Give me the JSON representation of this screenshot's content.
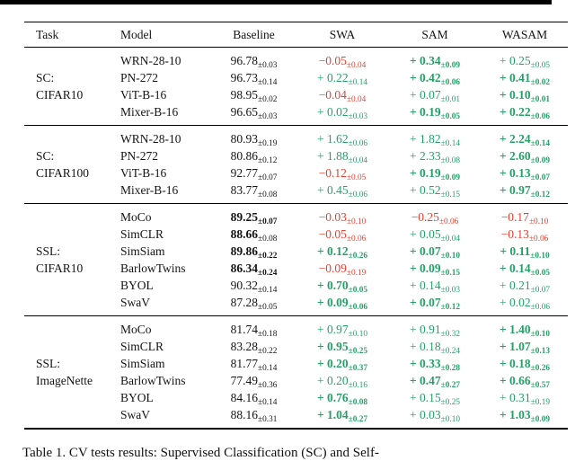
{
  "colors": {
    "green": "#25a168",
    "red": "#ee3d2e",
    "rule": "#000000"
  },
  "page": {
    "caption": "Table 1. CV tests results: Supervised Classification (SC) and Self-"
  },
  "table": {
    "headers": [
      "Task",
      "Model",
      "Baseline",
      "SWA",
      "SAM",
      "WASAM"
    ],
    "groups": [
      {
        "task_line1": "SC:",
        "task_line2": "CIFAR10",
        "rows": [
          {
            "model": "WRN-28-10",
            "baseline": {
              "v": "96.78",
              "s": "±0.03",
              "c": "black",
              "b": false
            },
            "swa": {
              "v": "−0.05",
              "s": "±0.04",
              "c": "red",
              "b": false
            },
            "sam": {
              "v": "+ 0.34",
              "s": "±0.09",
              "c": "green",
              "b": true
            },
            "wasam": {
              "v": "+ 0.25",
              "s": "±0.05",
              "c": "green",
              "b": false
            }
          },
          {
            "model": "PN-272",
            "baseline": {
              "v": "96.73",
              "s": "±0.14",
              "c": "black",
              "b": false
            },
            "swa": {
              "v": "+ 0.22",
              "s": "±0.14",
              "c": "green",
              "b": false
            },
            "sam": {
              "v": "+ 0.42",
              "s": "±0.06",
              "c": "green",
              "b": true
            },
            "wasam": {
              "v": "+ 0.41",
              "s": "±0.02",
              "c": "green",
              "b": true
            }
          },
          {
            "model": "ViT-B-16",
            "baseline": {
              "v": "98.95",
              "s": "±0.02",
              "c": "black",
              "b": false
            },
            "swa": {
              "v": "−0.04",
              "s": "±0.04",
              "c": "red",
              "b": false
            },
            "sam": {
              "v": "+ 0.07",
              "s": "±0.01",
              "c": "green",
              "b": false
            },
            "wasam": {
              "v": "+ 0.10",
              "s": "±0.01",
              "c": "green",
              "b": true
            }
          },
          {
            "model": "Mixer-B-16",
            "baseline": {
              "v": "96.65",
              "s": "±0.03",
              "c": "black",
              "b": false
            },
            "swa": {
              "v": "+ 0.02",
              "s": "±0.03",
              "c": "green",
              "b": false
            },
            "sam": {
              "v": "+ 0.19",
              "s": "±0.05",
              "c": "green",
              "b": true
            },
            "wasam": {
              "v": "+ 0.22",
              "s": "±0.06",
              "c": "green",
              "b": true
            }
          }
        ]
      },
      {
        "task_line1": "SC:",
        "task_line2": "CIFAR100",
        "rows": [
          {
            "model": "WRN-28-10",
            "baseline": {
              "v": "80.93",
              "s": "±0.19",
              "c": "black",
              "b": false
            },
            "swa": {
              "v": "+ 1.62",
              "s": "±0.06",
              "c": "green",
              "b": false
            },
            "sam": {
              "v": "+ 1.82",
              "s": "±0.14",
              "c": "green",
              "b": false
            },
            "wasam": {
              "v": "+ 2.24",
              "s": "±0.14",
              "c": "green",
              "b": true
            }
          },
          {
            "model": "PN-272",
            "baseline": {
              "v": "80.86",
              "s": "±0.12",
              "c": "black",
              "b": false
            },
            "swa": {
              "v": "+ 1.88",
              "s": "±0.04",
              "c": "green",
              "b": false
            },
            "sam": {
              "v": "+ 2.33",
              "s": "±0.08",
              "c": "green",
              "b": false
            },
            "wasam": {
              "v": "+ 2.60",
              "s": "±0.09",
              "c": "green",
              "b": true
            }
          },
          {
            "model": "ViT-B-16",
            "baseline": {
              "v": "92.77",
              "s": "±0.07",
              "c": "black",
              "b": false
            },
            "swa": {
              "v": "−0.12",
              "s": "±0.05",
              "c": "red",
              "b": false
            },
            "sam": {
              "v": "+ 0.19",
              "s": "±0.09",
              "c": "green",
              "b": true
            },
            "wasam": {
              "v": "+ 0.13",
              "s": "±0.07",
              "c": "green",
              "b": true
            }
          },
          {
            "model": "Mixer-B-16",
            "baseline": {
              "v": "83.77",
              "s": "±0.08",
              "c": "black",
              "b": false
            },
            "swa": {
              "v": "+ 0.45",
              "s": "±0.06",
              "c": "green",
              "b": false
            },
            "sam": {
              "v": "+ 0.52",
              "s": "±0.15",
              "c": "green",
              "b": false
            },
            "wasam": {
              "v": "+ 0.97",
              "s": "±0.12",
              "c": "green",
              "b": true
            }
          }
        ]
      },
      {
        "task_line1": "SSL:",
        "task_line2": "CIFAR10",
        "rows": [
          {
            "model": "MoCo",
            "baseline": {
              "v": "89.25",
              "s": "±0.07",
              "c": "black",
              "b": true
            },
            "swa": {
              "v": "−0.03",
              "s": "±0.10",
              "c": "red",
              "b": false
            },
            "sam": {
              "v": "−0.25",
              "s": "±0.06",
              "c": "red",
              "b": false
            },
            "wasam": {
              "v": "−0.17",
              "s": "±0.10",
              "c": "red",
              "b": false
            }
          },
          {
            "model": "SimCLR",
            "baseline": {
              "v": "88.66",
              "s": "±0.08",
              "c": "black",
              "b": true,
              "sb": false
            },
            "swa": {
              "v": "−0.05",
              "s": "±0.06",
              "c": "red",
              "b": false
            },
            "sam": {
              "v": "+ 0.05",
              "s": "±0.04",
              "c": "green",
              "b": false
            },
            "wasam": {
              "v": "−0.13",
              "s": "±0.06",
              "c": "red",
              "b": false
            }
          },
          {
            "model": "SimSiam",
            "baseline": {
              "v": "89.86",
              "s": "±0.22",
              "c": "black",
              "b": true
            },
            "swa": {
              "v": "+ 0.12",
              "s": "±0.26",
              "c": "green",
              "b": true
            },
            "sam": {
              "v": "+ 0.07",
              "s": "±0.10",
              "c": "green",
              "b": true
            },
            "wasam": {
              "v": "+ 0.11",
              "s": "±0.10",
              "c": "green",
              "b": true
            }
          },
          {
            "model": "BarlowTwins",
            "baseline": {
              "v": "86.34",
              "s": "±0.24",
              "c": "black",
              "b": true
            },
            "swa": {
              "v": "−0.09",
              "s": "±0.19",
              "c": "red",
              "b": false
            },
            "sam": {
              "v": "+ 0.09",
              "s": "±0.15",
              "c": "green",
              "b": true
            },
            "wasam": {
              "v": "+ 0.14",
              "s": "±0.05",
              "c": "green",
              "b": true
            }
          },
          {
            "model": "BYOL",
            "baseline": {
              "v": "90.32",
              "s": "±0.14",
              "c": "black",
              "b": false
            },
            "swa": {
              "v": "+ 0.70",
              "s": "±0.05",
              "c": "green",
              "b": true
            },
            "sam": {
              "v": "+ 0.14",
              "s": "±0.03",
              "c": "green",
              "b": false
            },
            "wasam": {
              "v": "+ 0.21",
              "s": "±0.07",
              "c": "green",
              "b": false
            }
          },
          {
            "model": "SwaV",
            "baseline": {
              "v": "87.28",
              "s": "±0.05",
              "c": "black",
              "b": false
            },
            "swa": {
              "v": "+ 0.09",
              "s": "±0.06",
              "c": "green",
              "b": true
            },
            "sam": {
              "v": "+ 0.07",
              "s": "±0.12",
              "c": "green",
              "b": true
            },
            "wasam": {
              "v": "+ 0.02",
              "s": "±0.06",
              "c": "green",
              "b": false
            }
          }
        ]
      },
      {
        "task_line1": "SSL:",
        "task_line2": "ImageNette",
        "rows": [
          {
            "model": "MoCo",
            "baseline": {
              "v": "81.74",
              "s": "±0.18",
              "c": "black",
              "b": false
            },
            "swa": {
              "v": "+ 0.97",
              "s": "±0.10",
              "c": "green",
              "b": false
            },
            "sam": {
              "v": "+ 0.91",
              "s": "±0.32",
              "c": "green",
              "b": false
            },
            "wasam": {
              "v": "+ 1.40",
              "s": "±0.10",
              "c": "green",
              "b": true
            }
          },
          {
            "model": "SimCLR",
            "baseline": {
              "v": "83.28",
              "s": "±0.22",
              "c": "black",
              "b": false
            },
            "swa": {
              "v": "+ 0.95",
              "s": "±0.25",
              "c": "green",
              "b": true
            },
            "sam": {
              "v": "+ 0.18",
              "s": "±0.24",
              "c": "green",
              "b": false
            },
            "wasam": {
              "v": "+ 1.07",
              "s": "±0.13",
              "c": "green",
              "b": true
            }
          },
          {
            "model": "SimSiam",
            "baseline": {
              "v": "81.77",
              "s": "±0.14",
              "c": "black",
              "b": false
            },
            "swa": {
              "v": "+ 0.20",
              "s": "±0.37",
              "c": "green",
              "b": true
            },
            "sam": {
              "v": "+ 0.33",
              "s": "±0.28",
              "c": "green",
              "b": true
            },
            "wasam": {
              "v": "+ 0.18",
              "s": "±0.26",
              "c": "green",
              "b": true
            }
          },
          {
            "model": "BarlowTwins",
            "baseline": {
              "v": "77.49",
              "s": "±0.36",
              "c": "black",
              "b": false
            },
            "swa": {
              "v": "+ 0.20",
              "s": "±0.16",
              "c": "green",
              "b": false
            },
            "sam": {
              "v": "+ 0.47",
              "s": "±0.27",
              "c": "green",
              "b": true
            },
            "wasam": {
              "v": "+ 0.66",
              "s": "±0.57",
              "c": "green",
              "b": true
            }
          },
          {
            "model": "BYOL",
            "baseline": {
              "v": "84.16",
              "s": "±0.14",
              "c": "black",
              "b": false
            },
            "swa": {
              "v": "+ 0.76",
              "s": "±0.08",
              "c": "green",
              "b": true
            },
            "sam": {
              "v": "+ 0.15",
              "s": "±0.25",
              "c": "green",
              "b": false
            },
            "wasam": {
              "v": "+ 0.31",
              "s": "±0.19",
              "c": "green",
              "b": false
            }
          },
          {
            "model": "SwaV",
            "baseline": {
              "v": "88.16",
              "s": "±0.31",
              "c": "black",
              "b": false
            },
            "swa": {
              "v": "+ 1.04",
              "s": "±0.27",
              "c": "green",
              "b": true
            },
            "sam": {
              "v": "+ 0.03",
              "s": "±0.10",
              "c": "green",
              "b": false
            },
            "wasam": {
              "v": "+ 1.03",
              "s": "±0.09",
              "c": "green",
              "b": true
            }
          }
        ]
      }
    ]
  }
}
